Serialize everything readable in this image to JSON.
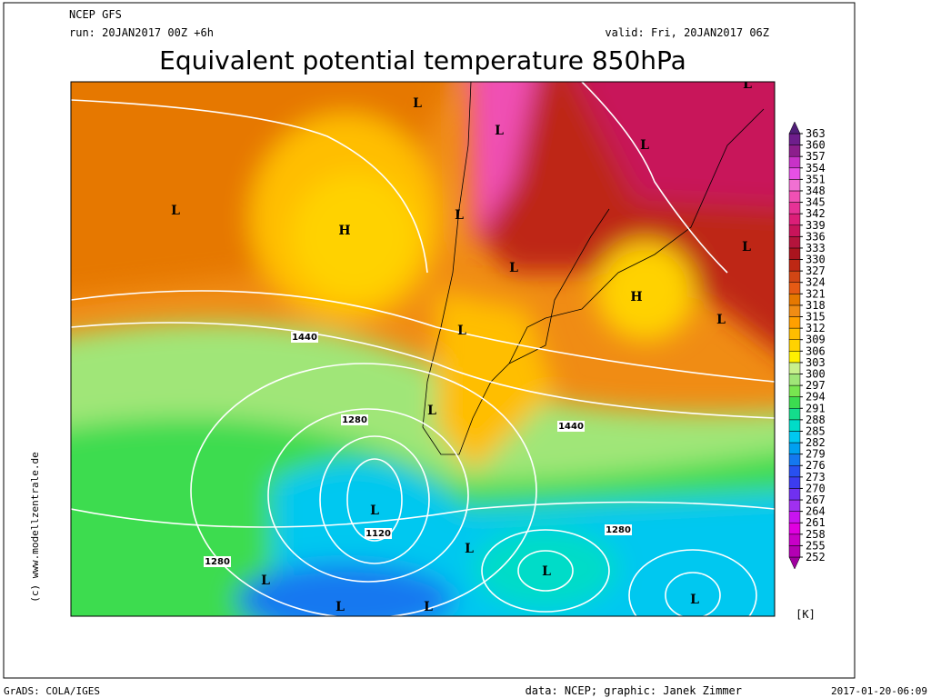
{
  "header": {
    "model": "NCEP GFS",
    "run": "run: 20JAN2017 00Z +6h",
    "valid": "valid: Fri, 20JAN2017 06Z",
    "title": "Equivalent potential temperature 850hPa"
  },
  "map": {
    "pressure_labels": [
      "L",
      "L",
      "L",
      "L",
      "H",
      "L",
      "L",
      "L",
      "H",
      "L",
      "L",
      "L",
      "L",
      "L",
      "L",
      "L",
      "L",
      "L",
      "L",
      "L"
    ],
    "contour_labels": [
      1440,
      1280,
      1440,
      1120,
      1280,
      1280
    ]
  },
  "colorbar": {
    "unit": "[K]",
    "ticks": [
      252,
      255,
      258,
      261,
      264,
      267,
      270,
      273,
      276,
      279,
      282,
      285,
      288,
      291,
      294,
      297,
      300,
      303,
      306,
      309,
      312,
      315,
      318,
      321,
      324,
      327,
      330,
      333,
      336,
      339,
      342,
      345,
      348,
      351,
      354,
      357,
      360,
      363
    ],
    "colors": [
      "#a000a0",
      "#b400b4",
      "#c800c8",
      "#e000e0",
      "#c814f0",
      "#a030f0",
      "#7030f0",
      "#3c3cf0",
      "#2850f0",
      "#1478f0",
      "#00a0f0",
      "#00c8f0",
      "#00dcc8",
      "#14dc8c",
      "#3cdc50",
      "#78e650",
      "#a0e678",
      "#c8f08c",
      "#fff000",
      "#ffd200",
      "#ffbe00",
      "#ffa000",
      "#f08c14",
      "#e67800",
      "#e65a14",
      "#d24614",
      "#be2814",
      "#aa141e",
      "#b4143c",
      "#c8145a",
      "#dc1e78",
      "#e63296",
      "#f050b4",
      "#f070d2",
      "#e650e6",
      "#c832c8",
      "#8c1e8c",
      "#6e1e8c",
      "#501e78"
    ]
  },
  "footer": {
    "left": "GrADS: COLA/IGES",
    "center": "data: NCEP; graphic: Janek Zimmer",
    "right": "2017-01-20-06:09",
    "side": "(c) www.modellzentrale.de"
  }
}
